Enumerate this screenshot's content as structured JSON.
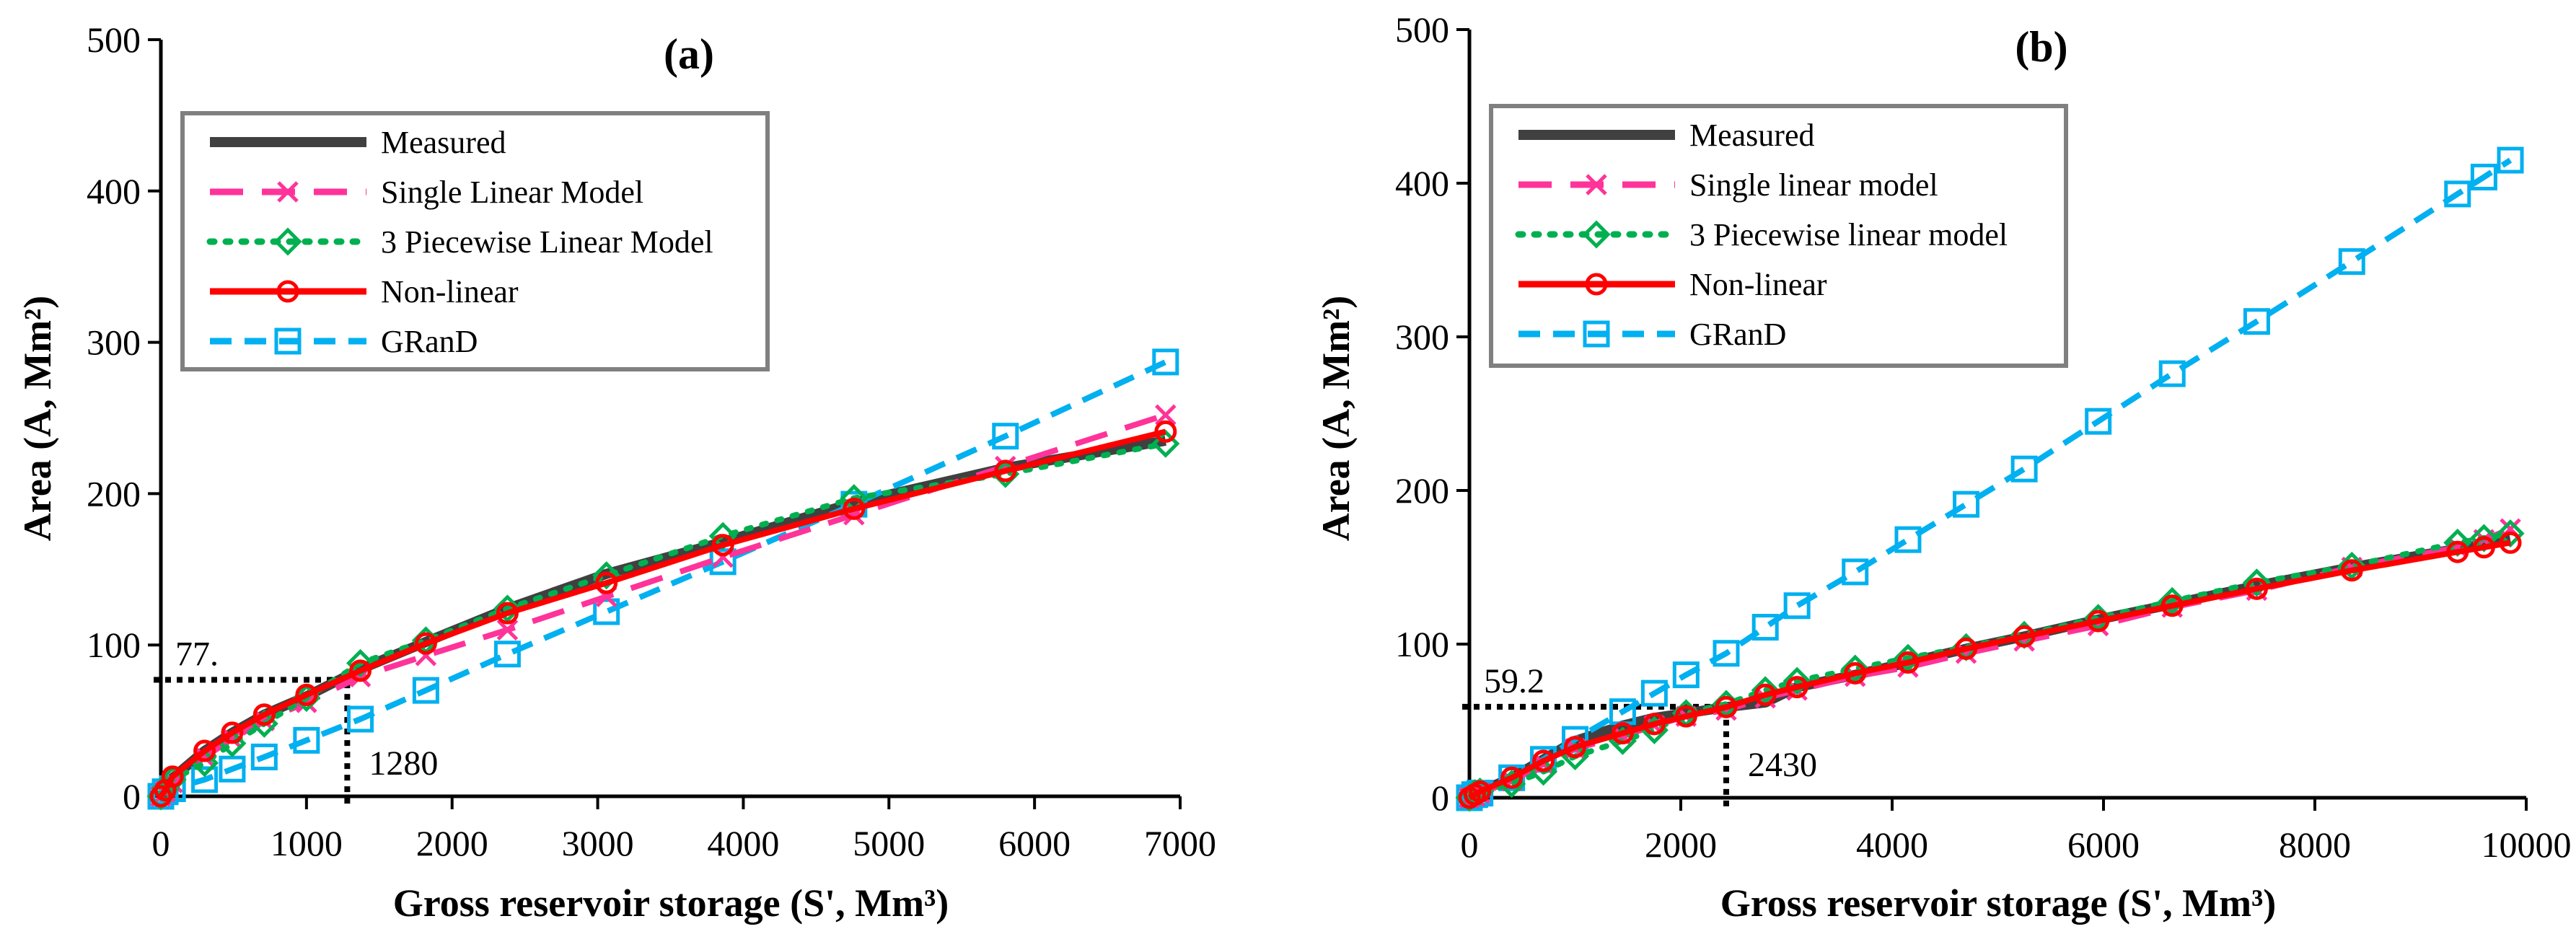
{
  "chart_data": [
    {
      "type": "line",
      "title": "(a)",
      "xlabel": "Gross reservoir storage (S', Mm³)",
      "ylabel": "Area (A, Mm²)",
      "xlim": [
        0,
        7000
      ],
      "ylim": [
        0,
        500
      ],
      "xticks": [
        "0",
        "1000",
        "2000",
        "3000",
        "4000",
        "5000",
        "6000",
        "7000"
      ],
      "yticks": [
        "0",
        "100",
        "200",
        "300",
        "400",
        "500"
      ],
      "grid": false,
      "legend_position": "top-left",
      "x": [
        0,
        30,
        80,
        300,
        490,
        710,
        1000,
        1370,
        1820,
        2380,
        3060,
        3860,
        4760,
        5800,
        6900
      ],
      "series": [
        {
          "name": "Measured",
          "color": "#404040",
          "style": "solid",
          "marker": "none",
          "values": [
            0,
            4,
            12,
            30,
            42,
            54,
            66,
            84,
            102,
            124,
            147,
            168,
            194,
            217,
            235
          ]
        },
        {
          "name": "Single Linear Model",
          "color": "#FF3399",
          "style": "dash",
          "marker": "x",
          "values": [
            0,
            3,
            9,
            26,
            38,
            50,
            62,
            79,
            93,
            110,
            132,
            158,
            186,
            218,
            252
          ]
        },
        {
          "name": "3 Piecewise Linear Model",
          "color": "#00B050",
          "style": "dot",
          "marker": "diamond",
          "values": [
            0,
            5,
            11,
            22,
            35,
            48,
            65,
            88,
            103,
            124,
            146,
            172,
            197,
            213,
            233
          ]
        },
        {
          "name": "Non-linear",
          "color": "#FF0000",
          "style": "solid",
          "marker": "circle",
          "values": [
            0,
            4,
            13,
            30,
            42,
            54,
            67,
            83,
            101,
            121,
            141,
            166,
            190,
            215,
            241
          ]
        },
        {
          "name": "GRanD",
          "color": "#00B0F0",
          "style": "dash2",
          "marker": "square",
          "values": [
            0,
            3,
            5,
            11,
            18,
            26,
            37,
            51,
            70,
            94,
            122,
            155,
            193,
            238,
            287
          ]
        }
      ],
      "annotation": {
        "x": 1280,
        "y": 77,
        "x_label": "1280",
        "y_label": "77."
      }
    },
    {
      "type": "line",
      "title": "(b)",
      "xlabel": "Gross reservoir storage (S', Mm³)",
      "ylabel": "Area (A, Mm²)",
      "xlim": [
        0,
        10000
      ],
      "ylim": [
        0,
        500
      ],
      "xticks": [
        "0",
        "2000",
        "4000",
        "6000",
        "8000",
        "10000"
      ],
      "yticks": [
        "0",
        "100",
        "200",
        "300",
        "400",
        "500"
      ],
      "grid": false,
      "legend_position": "top-left",
      "x": [
        0,
        50,
        100,
        400,
        700,
        1000,
        1450,
        1750,
        2050,
        2430,
        2800,
        3100,
        3650,
        4150,
        4700,
        5250,
        5950,
        6650,
        7450,
        8350,
        9350,
        9600,
        9850
      ],
      "series": [
        {
          "name": "Measured",
          "color": "#404040",
          "style": "solid",
          "marker": "none",
          "values": [
            0,
            2,
            4,
            13,
            25,
            37,
            47,
            52,
            55,
            59,
            62,
            72,
            80,
            88,
            97,
            105,
            116,
            126,
            138,
            150,
            162,
            165,
            168
          ]
        },
        {
          "name": "Single linear model",
          "color": "#FF3399",
          "style": "dash",
          "marker": "x",
          "values": [
            0,
            1,
            3,
            11,
            22,
            32,
            40,
            47,
            53,
            57,
            65,
            70,
            79,
            85,
            94,
            102,
            112,
            124,
            135,
            150,
            163,
            168,
            175
          ]
        },
        {
          "name": "3 Piecewise linear model",
          "color": "#00B050",
          "style": "dot",
          "marker": "diamond",
          "values": [
            0,
            3,
            4,
            9,
            17,
            27,
            37,
            44,
            55,
            61,
            70,
            76,
            84,
            91,
            98,
            106,
            117,
            128,
            140,
            151,
            166,
            169,
            172
          ]
        },
        {
          "name": "Non-linear",
          "color": "#FF0000",
          "style": "solid",
          "marker": "circle",
          "values": [
            0,
            2,
            4,
            13,
            24,
            33,
            42,
            48,
            53,
            59,
            67,
            72,
            81,
            88,
            97,
            105,
            115,
            125,
            136,
            148,
            160,
            163,
            166
          ]
        },
        {
          "name": "GRanD",
          "color": "#00B0F0",
          "style": "dash2",
          "marker": "square",
          "values": [
            0,
            2,
            3,
            13,
            25,
            38,
            56,
            68,
            80,
            94,
            111,
            125,
            147,
            168,
            191,
            214,
            245,
            276,
            310,
            349,
            393,
            404,
            415
          ]
        }
      ],
      "annotation": {
        "x": 2430,
        "y": 59.2,
        "x_label": "2430",
        "y_label": "59.2"
      }
    }
  ]
}
